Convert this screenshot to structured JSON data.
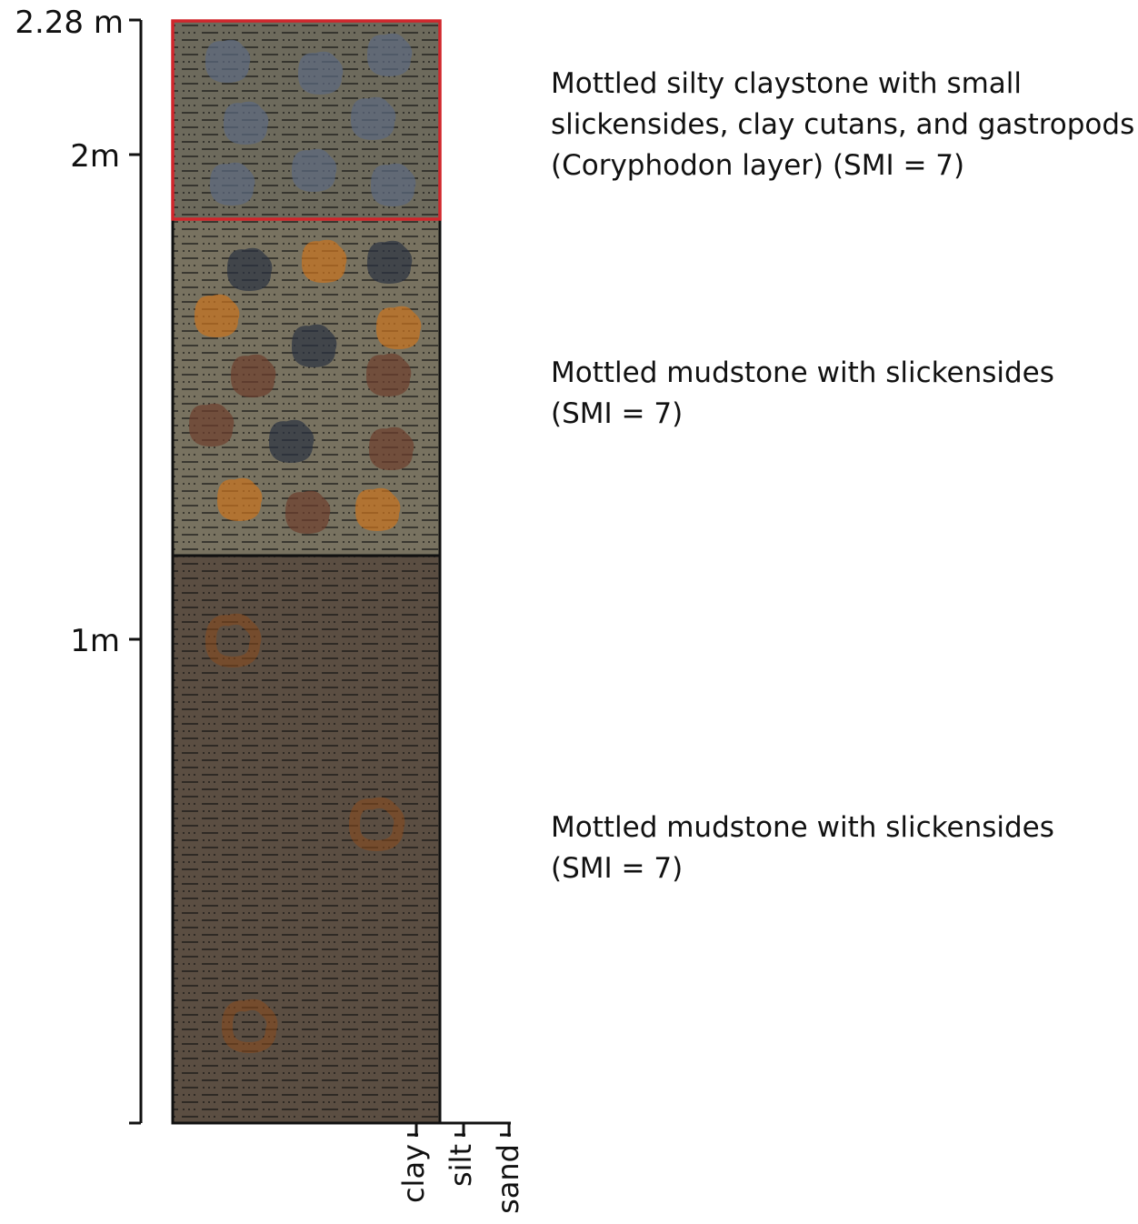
{
  "scale": {
    "labels": [
      "2.28 m",
      "2m",
      "1m"
    ]
  },
  "grain_size": [
    "clay",
    "silt",
    "sand"
  ],
  "units": [
    {
      "description": [
        "Mottled silty claystone with small",
        "slickensides, clay cutans, and gastropods",
        "(Coryphodon layer) (SMI = 7)"
      ]
    },
    {
      "description": [
        "Mottled mudstone with slickensides",
        "(SMI = 7)"
      ]
    },
    {
      "description": [
        "Mottled mudstone with slickensides",
        "(SMI = 7)"
      ]
    }
  ]
}
